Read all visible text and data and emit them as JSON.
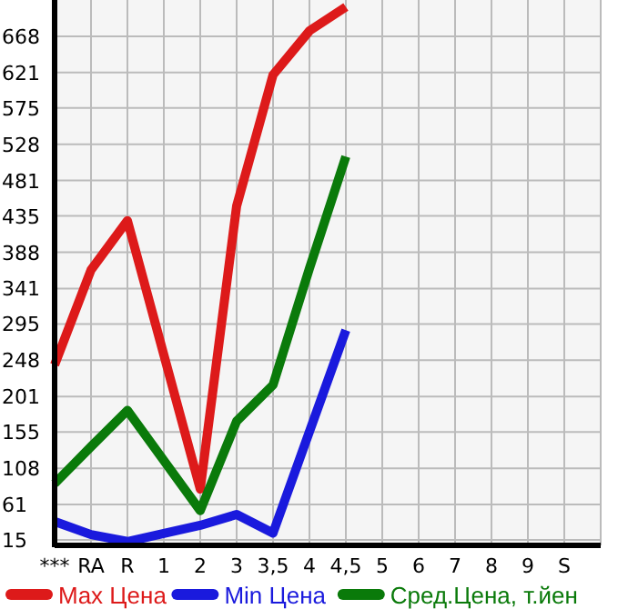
{
  "chart_data": {
    "type": "line",
    "categories": [
      "***",
      "RA",
      "R",
      "1",
      "2",
      "3",
      "3,5",
      "4",
      "4,5",
      "5",
      "6",
      "7",
      "8",
      "9",
      "S"
    ],
    "series": [
      {
        "name": "Max Цена",
        "color": "#dd1a1a",
        "values": [
          242,
          365,
          429,
          null,
          81,
          448,
          618,
          675,
          706,
          null,
          null,
          null,
          null,
          null,
          null
        ]
      },
      {
        "name": "Min Цена",
        "color": "#1a1add",
        "values": [
          39,
          22,
          13,
          null,
          34,
          48,
          24,
          null,
          287,
          null,
          null,
          null,
          null,
          null,
          null
        ]
      },
      {
        "name": "Сред.Цена, т.йен",
        "color": "#0a7a0a",
        "values": [
          88,
          136,
          183,
          null,
          53,
          169,
          216,
          367,
          512,
          null,
          null,
          null,
          null,
          null,
          null
        ]
      }
    ],
    "ylim": [
      8,
      715
    ],
    "yticks": [
      15,
      61,
      108,
      155,
      201,
      248,
      295,
      341,
      388,
      435,
      481,
      528,
      575,
      621,
      668
    ],
    "grid": true,
    "legend": "bottom",
    "marker": "none",
    "line_style": "solid"
  }
}
